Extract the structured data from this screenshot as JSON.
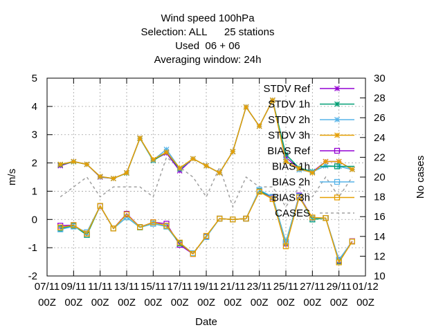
{
  "chart_data": {
    "type": "line",
    "title_lines": [
      "Wind speed 100hPa",
      "Selection: ALL      25 stations",
      "Used  06 + 06",
      "Averaging window: 24h"
    ],
    "xlabel": "Date",
    "ylabel": "m/s",
    "y2label": "No cases",
    "ylim": [
      -2,
      5
    ],
    "y2lim": [
      10,
      30
    ],
    "yticks": [
      -2,
      -1,
      0,
      1,
      2,
      3,
      4,
      5
    ],
    "y2ticks": [
      10,
      12,
      14,
      16,
      18,
      20,
      22,
      24,
      26,
      28,
      30
    ],
    "x_tick_labels": [
      [
        "07/11",
        "00Z"
      ],
      [
        "09/11",
        "00Z"
      ],
      [
        "11/11",
        "00Z"
      ],
      [
        "13/11",
        "00Z"
      ],
      [
        "15/11",
        "00Z"
      ],
      [
        "17/11",
        "00Z"
      ],
      [
        "19/11",
        "00Z"
      ],
      [
        "21/11",
        "00Z"
      ],
      [
        "23/11",
        "00Z"
      ],
      [
        "25/11",
        "00Z"
      ],
      [
        "27/11",
        "00Z"
      ],
      [
        "29/11",
        "00Z"
      ],
      [
        "01/12",
        "00Z"
      ]
    ],
    "x_range_days": [
      0,
      24
    ],
    "grid": true,
    "legend_position": "top-right",
    "x": [
      1,
      2,
      3,
      4,
      5,
      6,
      7,
      8,
      9,
      10,
      11,
      12,
      13,
      14,
      15,
      16,
      17,
      18,
      19,
      20,
      21,
      22,
      23
    ],
    "series": [
      {
        "name": "STDV Ref",
        "axis": "y1",
        "color": "#9400d3",
        "marker": "star",
        "values": [
          1.9,
          2.05,
          1.95,
          1.5,
          1.45,
          1.65,
          2.88,
          2.1,
          2.35,
          1.72,
          2.15,
          1.9,
          1.65,
          2.4,
          3.98,
          3.3,
          4.22,
          2.2,
          1.8,
          1.68,
          2.05,
          2.05,
          1.77
        ]
      },
      {
        "name": "STDV 1h",
        "axis": "y1",
        "color": "#009e73",
        "marker": "star",
        "values": [
          1.93,
          2.04,
          1.95,
          1.51,
          1.45,
          1.64,
          2.87,
          2.08,
          2.38,
          1.78,
          2.15,
          1.9,
          1.65,
          2.4,
          3.98,
          3.3,
          4.22,
          2.3,
          1.82,
          1.7,
          1.9,
          1.88,
          1.77
        ]
      },
      {
        "name": "STDV 2h",
        "axis": "y1",
        "color": "#56b4e9",
        "marker": "star",
        "values": [
          1.95,
          2.05,
          1.95,
          1.52,
          1.45,
          1.65,
          2.88,
          2.1,
          2.48,
          1.8,
          2.15,
          1.9,
          1.65,
          2.4,
          3.98,
          3.3,
          4.22,
          2.1,
          1.75,
          1.68,
          1.9,
          1.88,
          1.77
        ]
      },
      {
        "name": "STDV 3h",
        "axis": "y1",
        "color": "#e69f00",
        "marker": "star",
        "values": [
          1.95,
          2.05,
          1.95,
          1.52,
          1.45,
          1.65,
          2.88,
          2.12,
          2.38,
          1.82,
          2.15,
          1.9,
          1.65,
          2.4,
          3.98,
          3.3,
          4.22,
          2.05,
          1.8,
          1.65,
          2.05,
          2.05,
          1.77
        ]
      },
      {
        "name": "BIAS Ref",
        "axis": "y1",
        "color": "#9400d3",
        "marker": "square",
        "values": [
          -0.22,
          -0.2,
          -0.5,
          0.47,
          -0.32,
          0.2,
          -0.27,
          -0.1,
          -0.15,
          -0.9,
          -1.22,
          -0.6,
          0.03,
          0.0,
          0.03,
          1.0,
          0.78,
          -0.85,
          0.85,
          0.05,
          0.05,
          -1.45,
          -0.77
        ]
      },
      {
        "name": "BIAS 1h",
        "axis": "y1",
        "color": "#009e73",
        "marker": "square",
        "values": [
          -0.32,
          -0.22,
          -0.55,
          0.48,
          -0.32,
          0.08,
          -0.28,
          -0.15,
          -0.25,
          -0.85,
          -1.2,
          -0.62,
          0.03,
          0.0,
          0.03,
          1.0,
          0.8,
          -0.8,
          0.82,
          0.0,
          0.05,
          -1.48,
          -0.78
        ]
      },
      {
        "name": "BIAS 2h",
        "axis": "y1",
        "color": "#56b4e9",
        "marker": "square",
        "values": [
          -0.35,
          -0.25,
          -0.45,
          0.48,
          -0.32,
          0.08,
          -0.27,
          -0.15,
          -0.25,
          -0.82,
          -1.2,
          -0.62,
          0.03,
          0.0,
          0.03,
          1.05,
          0.8,
          -0.82,
          0.82,
          0.05,
          0.05,
          -1.42,
          -0.78
        ]
      },
      {
        "name": "BIAS 3h",
        "axis": "y1",
        "color": "#e69f00",
        "marker": "square",
        "values": [
          -0.28,
          -0.2,
          -0.5,
          0.48,
          -0.32,
          0.18,
          -0.27,
          -0.1,
          -0.22,
          -0.82,
          -1.22,
          -0.58,
          0.03,
          0.0,
          0.03,
          0.98,
          0.72,
          -0.95,
          0.78,
          0.07,
          0.05,
          -1.52,
          -0.78
        ]
      },
      {
        "name": "CASES",
        "axis": "y2",
        "color": "#a0a0a0",
        "marker": "none",
        "dashed": true,
        "values": [
          18,
          19,
          20,
          18,
          19,
          19,
          19,
          18,
          22,
          21,
          20,
          18,
          21,
          17,
          20,
          19,
          19,
          17,
          19,
          18,
          20,
          18,
          20
        ]
      }
    ]
  }
}
